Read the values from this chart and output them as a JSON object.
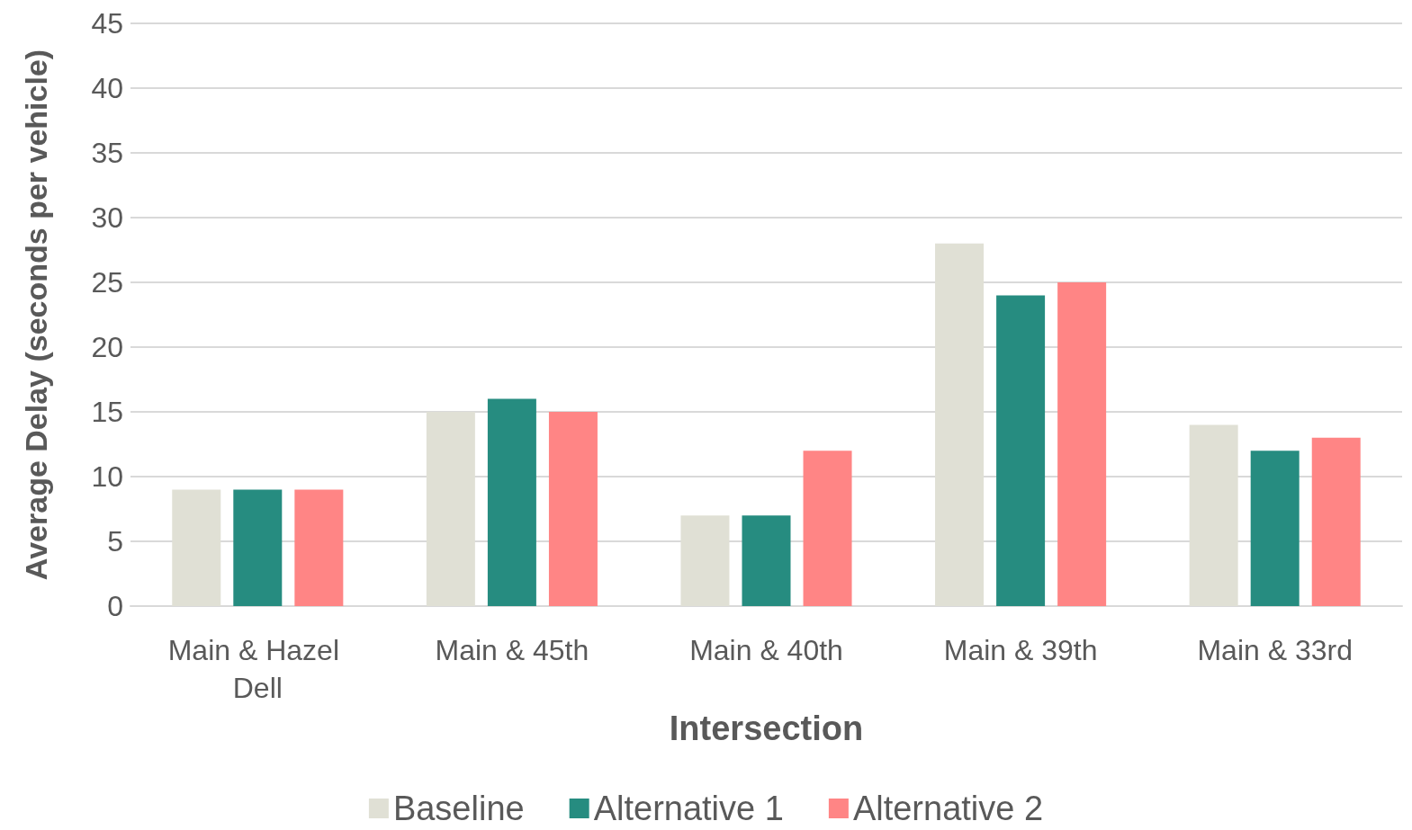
{
  "chart_data": {
    "type": "bar",
    "xlabel": "Intersection",
    "ylabel": "Average Delay (seconds per vehicle)",
    "categories": [
      "Main & Hazel Dell",
      "Main & 45th",
      "Main & 40th",
      "Main & 39th",
      "Main & 33rd"
    ],
    "series": [
      {
        "name": "Baseline",
        "color": "#e0e0d5",
        "values": [
          9,
          15,
          7,
          28,
          14
        ]
      },
      {
        "name": "Alternative 1",
        "color": "#268c80",
        "values": [
          9,
          16,
          7,
          24,
          12
        ]
      },
      {
        "name": "Alternative 2",
        "color": "#ff8585",
        "values": [
          9,
          15,
          12,
          25,
          13
        ]
      }
    ],
    "ylim": [
      0,
      45
    ],
    "yticks": [
      0,
      5,
      10,
      15,
      20,
      25,
      30,
      35,
      40,
      45
    ],
    "grid": "y",
    "legend": "bottom"
  }
}
